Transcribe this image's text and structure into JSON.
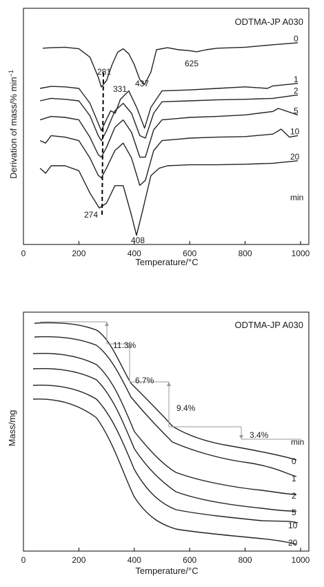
{
  "chart_data": [
    {
      "type": "line",
      "title": "ODTMA-JP A030",
      "xlabel": "Temperature/°C",
      "ylabel": "Derivation of mass/% min",
      "ylabel_sup": "−1",
      "xlim": [
        0,
        1000
      ],
      "xticks": [
        0,
        200,
        400,
        600,
        800,
        1000
      ],
      "grid": false,
      "unit_label": "min",
      "series": [
        {
          "name": "0",
          "x": [
            70,
            100,
            150,
            200,
            240,
            270,
            281,
            300,
            320,
            340,
            360,
            380,
            400,
            420,
            437,
            460,
            480,
            520,
            560,
            600,
            625,
            660,
            700,
            800,
            900,
            990
          ],
          "y": [
            0.03,
            0.04,
            0.05,
            0.02,
            -0.15,
            -0.55,
            -0.75,
            -0.62,
            -0.3,
            -0.05,
            0.02,
            -0.08,
            -0.3,
            -0.6,
            -0.7,
            -0.45,
            0.0,
            0.04,
            0.0,
            -0.02,
            -0.04,
            0.0,
            0.03,
            0.05,
            0.1,
            0.14
          ]
        },
        {
          "name": "1",
          "x": [
            60,
            100,
            150,
            200,
            240,
            270,
            281,
            300,
            315,
            331,
            350,
            380,
            410,
            437,
            460,
            500,
            600,
            700,
            800,
            880,
            900,
            990
          ],
          "y": [
            0.0,
            0.04,
            0.03,
            0.0,
            -0.3,
            -0.7,
            -0.85,
            -0.62,
            -0.45,
            -0.5,
            -0.22,
            -0.05,
            -0.4,
            -0.8,
            -0.38,
            -0.05,
            -0.03,
            0.0,
            0.03,
            0.0,
            0.05,
            0.1
          ]
        },
        {
          "name": "2",
          "x": [
            60,
            100,
            150,
            200,
            240,
            270,
            281,
            300,
            330,
            360,
            390,
            420,
            440,
            470,
            500,
            600,
            700,
            800,
            900,
            990
          ],
          "y": [
            0.0,
            0.05,
            0.03,
            0.0,
            -0.3,
            -0.7,
            -0.8,
            -0.6,
            -0.2,
            -0.05,
            -0.25,
            -0.7,
            -0.75,
            -0.25,
            -0.02,
            0.0,
            0.02,
            0.03,
            0.05,
            0.12
          ]
        },
        {
          "name": "5",
          "x": [
            60,
            100,
            150,
            200,
            240,
            270,
            281,
            300,
            330,
            360,
            390,
            420,
            440,
            470,
            500,
            600,
            700,
            800,
            900,
            920,
            990
          ],
          "y": [
            -0.05,
            0.02,
            0.0,
            -0.05,
            -0.4,
            -0.75,
            -0.8,
            -0.6,
            -0.2,
            -0.05,
            -0.3,
            -0.8,
            -0.8,
            -0.25,
            -0.05,
            0.0,
            0.02,
            0.05,
            0.12,
            0.18,
            0.05
          ]
        },
        {
          "name": "10",
          "x": [
            60,
            80,
            100,
            150,
            200,
            240,
            270,
            281,
            300,
            330,
            360,
            390,
            420,
            440,
            470,
            500,
            600,
            700,
            800,
            900,
            930,
            960,
            990
          ],
          "y": [
            -0.05,
            -0.1,
            0.05,
            0.02,
            -0.05,
            -0.4,
            -0.75,
            -0.8,
            -0.6,
            -0.25,
            -0.1,
            -0.4,
            -0.95,
            -0.85,
            -0.25,
            -0.05,
            0.0,
            0.02,
            0.03,
            0.08,
            0.18,
            0.02,
            0.05
          ]
        },
        {
          "name": "20",
          "x": [
            60,
            80,
            100,
            150,
            200,
            240,
            274,
            300,
            330,
            360,
            390,
            408,
            430,
            460,
            490,
            520,
            600,
            700,
            800,
            900,
            990
          ],
          "y": [
            -0.05,
            -0.15,
            0.0,
            0.0,
            -0.1,
            -0.55,
            -0.85,
            -0.75,
            -0.4,
            -0.4,
            -1.0,
            -1.4,
            -0.9,
            -0.2,
            -0.05,
            0.0,
            0.02,
            0.02,
            0.03,
            0.05,
            0.1
          ]
        }
      ],
      "annotations": [
        "281",
        "331",
        "437",
        "625",
        "274",
        "408"
      ]
    },
    {
      "type": "line",
      "title": "ODTMA-JP A030",
      "xlabel": "Temperature/°C",
      "ylabel": "Mass/mg",
      "xlim": [
        0,
        1000
      ],
      "xticks": [
        0,
        200,
        400,
        600,
        800,
        1000
      ],
      "grid": false,
      "unit_label": "min",
      "series_labels": [
        "0",
        "1",
        "2",
        "5",
        "10",
        "20"
      ],
      "mass_losses": [
        "11.3%",
        "6.7%",
        "9.4%",
        "3.4%"
      ]
    }
  ]
}
